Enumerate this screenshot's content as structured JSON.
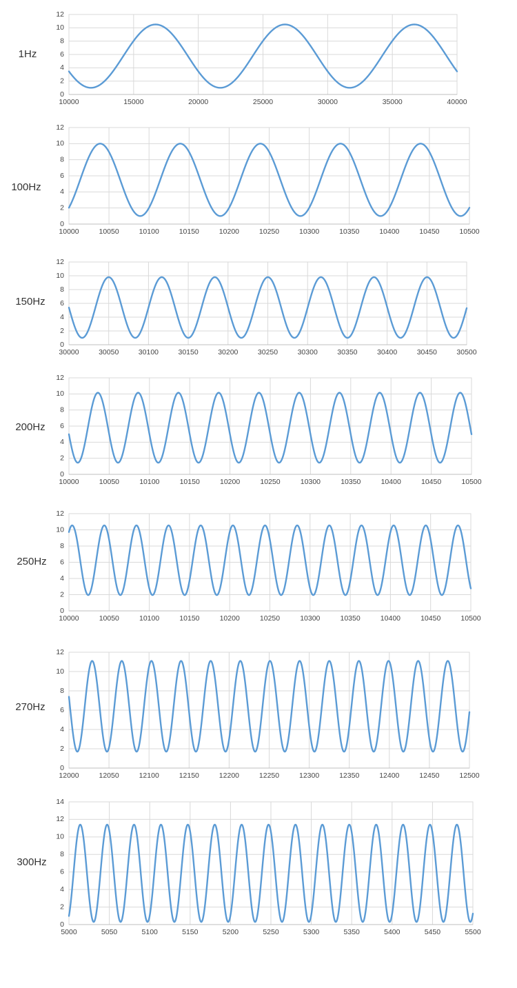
{
  "style": {
    "line_color": "#5b9bd5",
    "grid_color": "#d9d9d9",
    "text_color": "#333333"
  },
  "chart_data": [
    {
      "type": "line",
      "label": "1Hz",
      "xlim": [
        10000,
        40000
      ],
      "ylim": [
        0,
        12
      ],
      "xticks": [
        10000,
        15000,
        20000,
        25000,
        30000,
        35000,
        40000
      ],
      "yticks": [
        0,
        2,
        4,
        6,
        8,
        10,
        12
      ],
      "series": [
        {
          "waveform": {
            "mean": 5.75,
            "amplitude": 4.75,
            "period": 10000,
            "peak_x": 16700
          }
        }
      ]
    },
    {
      "type": "line",
      "label": "100Hz",
      "xlim": [
        10000,
        10500
      ],
      "ylim": [
        0,
        12
      ],
      "xticks": [
        10000,
        10050,
        10100,
        10150,
        10200,
        10250,
        10300,
        10350,
        10400,
        10450,
        10500
      ],
      "yticks": [
        0,
        2,
        4,
        6,
        8,
        10,
        12
      ],
      "series": [
        {
          "waveform": {
            "mean": 5.5,
            "amplitude": 4.5,
            "period": 100,
            "peak_x": 10039
          }
        }
      ]
    },
    {
      "type": "line",
      "label": "150Hz",
      "xlim": [
        30000,
        30500
      ],
      "ylim": [
        0,
        12
      ],
      "xticks": [
        30000,
        30050,
        30100,
        30150,
        30200,
        30250,
        30300,
        30350,
        30400,
        30450,
        30500
      ],
      "yticks": [
        0,
        2,
        4,
        6,
        8,
        10,
        12
      ],
      "series": [
        {
          "waveform": {
            "mean": 5.4,
            "amplitude": 4.4,
            "period": 66.7,
            "peak_x": 30050
          }
        }
      ]
    },
    {
      "type": "line",
      "label": "200Hz",
      "xlim": [
        10000,
        10500
      ],
      "ylim": [
        0,
        12
      ],
      "xticks": [
        10000,
        10050,
        10100,
        10150,
        10200,
        10250,
        10300,
        10350,
        10400,
        10450,
        10500
      ],
      "yticks": [
        0,
        2,
        4,
        6,
        8,
        10,
        12
      ],
      "series": [
        {
          "waveform": {
            "mean": 5.8,
            "amplitude": 4.35,
            "period": 50,
            "peak_x": 10036
          }
        }
      ]
    },
    {
      "type": "line",
      "label": "250Hz",
      "xlim": [
        10000,
        10500
      ],
      "ylim": [
        0,
        12
      ],
      "xticks": [
        10000,
        10050,
        10100,
        10150,
        10200,
        10250,
        10300,
        10350,
        10400,
        10450,
        10500
      ],
      "yticks": [
        0,
        2,
        4,
        6,
        8,
        10,
        12
      ],
      "series": [
        {
          "waveform": {
            "mean": 6.25,
            "amplitude": 4.3,
            "period": 40,
            "peak_x": 10004
          }
        }
      ]
    },
    {
      "type": "line",
      "label": "270Hz",
      "xlim": [
        12000,
        12500
      ],
      "ylim": [
        0,
        12
      ],
      "xticks": [
        12000,
        12050,
        12100,
        12150,
        12200,
        12250,
        12300,
        12350,
        12400,
        12450,
        12500
      ],
      "yticks": [
        0,
        2,
        4,
        6,
        8,
        10,
        12
      ],
      "series": [
        {
          "waveform": {
            "mean": 6.4,
            "amplitude": 4.7,
            "period": 37,
            "peak_x": 12029
          }
        }
      ]
    },
    {
      "type": "line",
      "label": "300Hz",
      "xlim": [
        5000,
        5500
      ],
      "ylim": [
        0,
        14
      ],
      "xticks": [
        5000,
        5050,
        5100,
        5150,
        5200,
        5250,
        5300,
        5350,
        5400,
        5450,
        5500
      ],
      "yticks": [
        0,
        2,
        4,
        6,
        8,
        10,
        12,
        14
      ],
      "series": [
        {
          "waveform": {
            "mean": 5.85,
            "amplitude": 5.55,
            "period": 33.3,
            "peak_x": 5014
          }
        }
      ]
    }
  ]
}
